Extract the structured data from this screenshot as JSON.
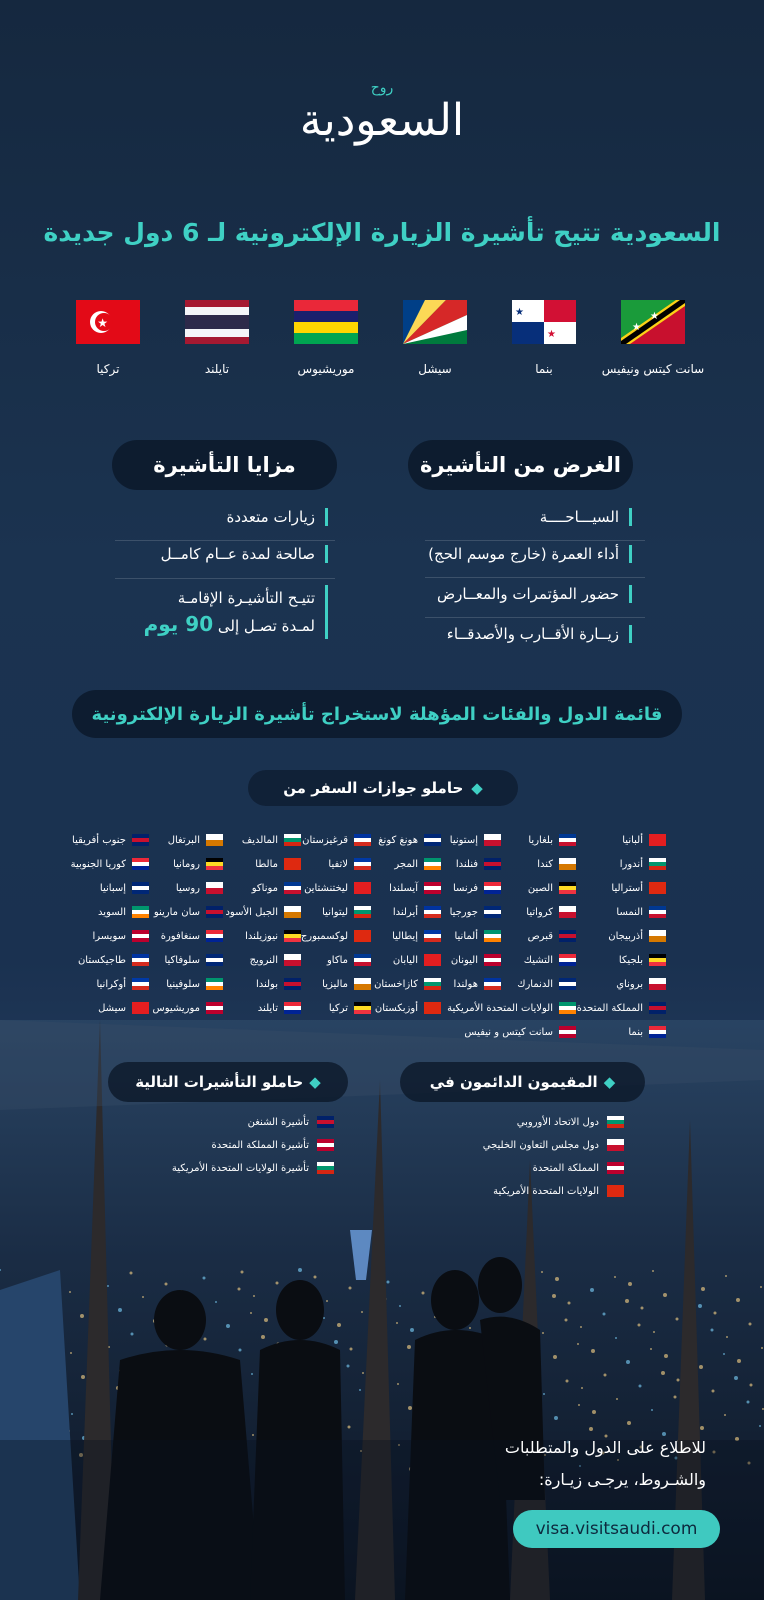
{
  "header": {
    "logo_top": "روح",
    "logo": "السعودية",
    "headline": "السعودية تتيح تأشيرة الزيارة الإلكترونية لـ 6 دول جديدة"
  },
  "new_countries": [
    "سانت كيتس ونيفيس",
    "بنما",
    "سيشل",
    "موريشيوس",
    "تايلند",
    "تركيا"
  ],
  "purpose": {
    "title": "الغرض من التأشيرة",
    "items": [
      "السيـــاحــــة",
      "أداء العمرة (خارج موسم الحج)",
      "حضور المؤتمرات والمعــارض",
      "زيــارة الأقــارب والأصدقــاء"
    ]
  },
  "benefits": {
    "title": "مزايا التأشيرة",
    "items": [
      "زيارات متعددة",
      "صالحة لمدة عــام كامــل",
      {
        "line1": "تتيـح التأشيـرة الإقامـة",
        "line2": "لمـدة تصـل إلى",
        "highlight": "90 يوم"
      }
    ]
  },
  "eligibility": {
    "title": "قائمة الدول والفئات المؤهلة لاستخراج تأشيرة الزيارة الإلكترونية",
    "passports": {
      "title": "حاملو جوازات السفر من",
      "columns": [
        [
          "ألبانيا",
          "أندورا",
          "أستراليا",
          "النمسا",
          "أذربيجان",
          "بلجيكا",
          "بروناي",
          "المملكة المتحدة",
          "بنما"
        ],
        [
          "بلغاريا",
          "كندا",
          "الصين",
          "كرواتيا",
          "قبرص",
          "التشيك",
          "الدنمارك",
          "الولايات المتحدة الأمريكية",
          "سانت كيتس و نيفيس"
        ],
        [
          "إستونيا",
          "فنلندا",
          "فرنسا",
          "جورجيا",
          "ألمانيا",
          "اليونان",
          "هولندا"
        ],
        [
          "هونغ كونغ",
          "المجر",
          "آيسلندا",
          "أيرلندا",
          "إيطاليا",
          "اليابان",
          "كازاخستان",
          "أوزبكستان"
        ],
        [
          "قرغيزستان",
          "لاتفيا",
          "ليختنشتاين",
          "ليتوانيا",
          "لوكسمبورج",
          "ماكاو",
          "ماليزيا",
          "تركيا"
        ],
        [
          "المالديف",
          "مالطا",
          "موناكو",
          "الجبل الأسود",
          "نيوزيلندا",
          "النرويج",
          "بولندا",
          "تايلند"
        ],
        [
          "البرتغال",
          "رومانيا",
          "روسيا",
          "سان مارينو",
          "سنغافورة",
          "سلوفاكيا",
          "سلوفينيا",
          "موريشيوس"
        ],
        [
          "جنوب أفريقيا",
          "كوريا الجنوبية",
          "إسبانيا",
          "السويد",
          "سويسرا",
          "طاجيكستان",
          "أوكرانيا",
          "سيشل"
        ]
      ]
    },
    "residents": {
      "title": "المقيمون الدائمون في",
      "items": [
        "دول الاتحاد الأوروبي",
        "دول مجلس التعاون الخليجي",
        "المملكة المتحدة",
        "الولايات المتحدة الأمريكية"
      ]
    },
    "visa_holders": {
      "title": "حاملو التأشيرات التالية",
      "items": [
        "تأشيرة الشنغن",
        "تأشيرة المملكة المتحدة",
        "تأشيرة الولايات المتحدة الأمريكية"
      ]
    }
  },
  "footer": {
    "line1": "للاطلاع على الدول والمتطلبات",
    "line2": "والشـروط، يرجـى زيـارة:",
    "url": "visa.visitsaudi.com"
  }
}
